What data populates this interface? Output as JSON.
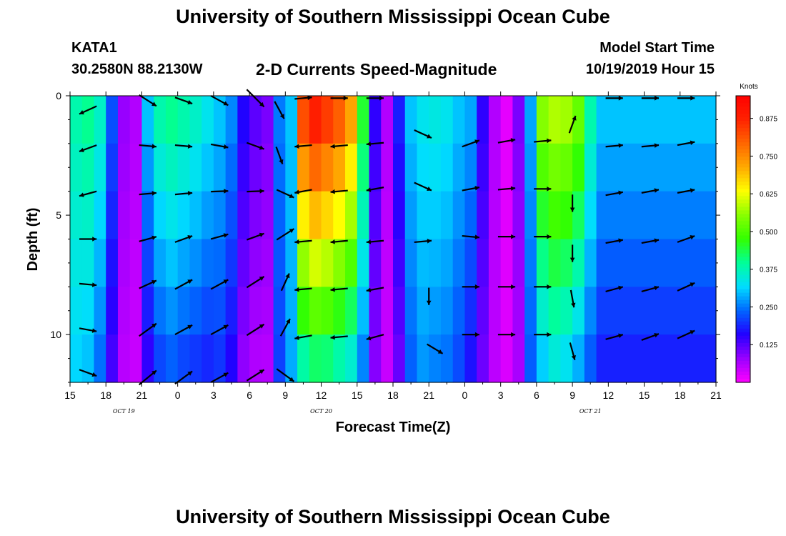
{
  "header": {
    "title": "University of Southern Mississippi Ocean Cube",
    "station": "KATA1",
    "coords": "30.2580N 88.2130W",
    "plot_title": "2-D Currents Speed-Magnitude",
    "model_label": "Model Start Time",
    "model_time": "10/19/2019 Hour 15"
  },
  "footer": {
    "title": "University of Southern Mississippi Ocean Cube"
  },
  "chart_data": {
    "type": "heatmap",
    "title": "2-D Currents Speed-Magnitude",
    "xlabel": "Forecast Time(Z)",
    "ylabel": "Depth (ft)",
    "x_ticks": [
      "15",
      "18",
      "21",
      "0",
      "3",
      "6",
      "9",
      "12",
      "15",
      "18",
      "21",
      "0",
      "3",
      "6",
      "9",
      "12",
      "15",
      "18",
      "21"
    ],
    "date_labels": [
      {
        "label": "OCT 19",
        "hour": 4.5
      },
      {
        "label": "OCT 20",
        "hour": 21
      },
      {
        "label": "OCT 21",
        "hour": 43.5
      }
    ],
    "y_ticks": [
      0,
      5,
      10
    ],
    "ylim": [
      0,
      12
    ],
    "xlim_hours": [
      0,
      54
    ],
    "depths": [
      0,
      2,
      4,
      6,
      8,
      10,
      12
    ],
    "colorbar": {
      "unit": "Knots",
      "min": 0.0,
      "max": 0.95,
      "ticks": [
        "0.125",
        "0.250",
        "0.375",
        "0.500",
        "0.625",
        "0.750",
        "0.875"
      ],
      "colors": [
        "#ff00ff",
        "#9900ff",
        "#2200ff",
        "#0066ff",
        "#00ddff",
        "#00ff99",
        "#33ff00",
        "#88ff00",
        "#ffff00",
        "#ffaa00",
        "#ff6600",
        "#ff2200",
        "#ff0000"
      ]
    },
    "speed_profiles": [
      {
        "hour": 0,
        "surface": 0.38,
        "bottom": 0.3
      },
      {
        "hour": 1,
        "surface": 0.4,
        "bottom": 0.28
      },
      {
        "hour": 2,
        "surface": 0.36,
        "bottom": 0.22
      },
      {
        "hour": 3,
        "surface": 0.22,
        "bottom": 0.12
      },
      {
        "hour": 4,
        "surface": 0.08,
        "bottom": 0.05
      },
      {
        "hour": 5,
        "surface": 0.06,
        "bottom": 0.04
      },
      {
        "hour": 6,
        "surface": 0.3,
        "bottom": 0.12
      },
      {
        "hour": 7,
        "surface": 0.38,
        "bottom": 0.18
      },
      {
        "hour": 8,
        "surface": 0.4,
        "bottom": 0.2
      },
      {
        "hour": 9,
        "surface": 0.38,
        "bottom": 0.18
      },
      {
        "hour": 10,
        "surface": 0.36,
        "bottom": 0.17
      },
      {
        "hour": 11,
        "surface": 0.33,
        "bottom": 0.16
      },
      {
        "hour": 12,
        "surface": 0.3,
        "bottom": 0.18
      },
      {
        "hour": 13,
        "surface": 0.26,
        "bottom": 0.14
      },
      {
        "hour": 14,
        "surface": 0.16,
        "bottom": 0.07
      },
      {
        "hour": 15,
        "surface": 0.12,
        "bottom": 0.05
      },
      {
        "hour": 16,
        "surface": 0.1,
        "bottom": 0.05
      },
      {
        "hour": 17,
        "surface": 0.25,
        "bottom": 0.2
      },
      {
        "hour": 18,
        "surface": 0.3,
        "bottom": 0.28
      },
      {
        "hour": 19,
        "surface": 0.82,
        "bottom": 0.3
      },
      {
        "hour": 20,
        "surface": 0.88,
        "bottom": 0.33
      },
      {
        "hour": 21,
        "surface": 0.84,
        "bottom": 0.33
      },
      {
        "hour": 22,
        "surface": 0.8,
        "bottom": 0.3
      },
      {
        "hour": 23,
        "surface": 0.72,
        "bottom": 0.28
      },
      {
        "hour": 24,
        "surface": 0.45,
        "bottom": 0.22
      },
      {
        "hour": 25,
        "surface": 0.15,
        "bottom": 0.08
      },
      {
        "hour": 26,
        "surface": 0.06,
        "bottom": 0.04
      },
      {
        "hour": 27,
        "surface": 0.18,
        "bottom": 0.1
      },
      {
        "hour": 28,
        "surface": 0.3,
        "bottom": 0.22
      },
      {
        "hour": 29,
        "surface": 0.33,
        "bottom": 0.26
      },
      {
        "hour": 30,
        "surface": 0.34,
        "bottom": 0.24
      },
      {
        "hour": 31,
        "surface": 0.33,
        "bottom": 0.23
      },
      {
        "hour": 32,
        "surface": 0.3,
        "bottom": 0.2
      },
      {
        "hour": 33,
        "surface": 0.28,
        "bottom": 0.15
      },
      {
        "hour": 34,
        "surface": 0.15,
        "bottom": 0.1
      },
      {
        "hour": 35,
        "surface": 0.06,
        "bottom": 0.05
      },
      {
        "hour": 36,
        "surface": 0.02,
        "bottom": 0.03
      },
      {
        "hour": 37,
        "surface": 0.1,
        "bottom": 0.06
      },
      {
        "hour": 38,
        "surface": 0.28,
        "bottom": 0.22
      },
      {
        "hour": 39,
        "surface": 0.55,
        "bottom": 0.26
      },
      {
        "hour": 40,
        "surface": 0.58,
        "bottom": 0.3
      },
      {
        "hour": 41,
        "surface": 0.57,
        "bottom": 0.28
      },
      {
        "hour": 42,
        "surface": 0.52,
        "bottom": 0.24
      },
      {
        "hour": 43,
        "surface": 0.38,
        "bottom": 0.2
      },
      {
        "hour": 44,
        "surface": 0.3,
        "bottom": 0.16
      }
    ],
    "vectors": [
      {
        "t": 1.5,
        "d": 0.6,
        "u": -0.55,
        "v": -0.25
      },
      {
        "t": 1.5,
        "d": 2.2,
        "u": -0.55,
        "v": -0.2
      },
      {
        "t": 1.5,
        "d": 4.1,
        "u": -0.55,
        "v": -0.15
      },
      {
        "t": 1.5,
        "d": 6.0,
        "u": 0.55,
        "v": 0.0
      },
      {
        "t": 1.5,
        "d": 7.9,
        "u": 0.55,
        "v": -0.05
      },
      {
        "t": 1.5,
        "d": 9.8,
        "u": 0.55,
        "v": -0.1
      },
      {
        "t": 1.5,
        "d": 11.6,
        "u": 0.55,
        "v": -0.2
      },
      {
        "t": 3,
        "d": 0.2,
        "u": 0.0,
        "v": 0.0
      },
      {
        "t": 6.5,
        "d": 0.2,
        "u": 0.55,
        "v": -0.35
      },
      {
        "t": 6.5,
        "d": 2.1,
        "u": 0.55,
        "v": -0.05
      },
      {
        "t": 6.5,
        "d": 4.1,
        "u": 0.55,
        "v": 0.05
      },
      {
        "t": 6.5,
        "d": 6.0,
        "u": 0.55,
        "v": 0.15
      },
      {
        "t": 6.5,
        "d": 7.9,
        "u": 0.55,
        "v": 0.25
      },
      {
        "t": 6.5,
        "d": 9.8,
        "u": 0.55,
        "v": 0.4
      },
      {
        "t": 6.5,
        "d": 11.8,
        "u": 0.55,
        "v": 0.45
      },
      {
        "t": 9.5,
        "d": 0.2,
        "u": 0.55,
        "v": -0.2
      },
      {
        "t": 9.5,
        "d": 2.1,
        "u": 0.55,
        "v": -0.05
      },
      {
        "t": 9.5,
        "d": 4.1,
        "u": 0.55,
        "v": 0.05
      },
      {
        "t": 9.5,
        "d": 6.0,
        "u": 0.55,
        "v": 0.2
      },
      {
        "t": 9.5,
        "d": 7.9,
        "u": 0.55,
        "v": 0.3
      },
      {
        "t": 9.5,
        "d": 9.8,
        "u": 0.55,
        "v": 0.3
      },
      {
        "t": 9.5,
        "d": 11.8,
        "u": 0.55,
        "v": 0.4
      },
      {
        "t": 12.5,
        "d": 0.2,
        "u": 0.55,
        "v": -0.3
      },
      {
        "t": 12.5,
        "d": 2.1,
        "u": 0.55,
        "v": -0.1
      },
      {
        "t": 12.5,
        "d": 4.0,
        "u": 0.55,
        "v": 0.02
      },
      {
        "t": 12.5,
        "d": 5.9,
        "u": 0.55,
        "v": 0.15
      },
      {
        "t": 12.5,
        "d": 7.9,
        "u": 0.55,
        "v": 0.3
      },
      {
        "t": 12.5,
        "d": 9.8,
        "u": 0.55,
        "v": 0.3
      },
      {
        "t": 12.5,
        "d": 11.8,
        "u": 0.55,
        "v": 0.3
      },
      {
        "t": 15.5,
        "d": 0.1,
        "u": 0.55,
        "v": -0.55
      },
      {
        "t": 15.5,
        "d": 2.1,
        "u": 0.55,
        "v": -0.2
      },
      {
        "t": 15.5,
        "d": 4.0,
        "u": 0.55,
        "v": 0.02
      },
      {
        "t": 15.5,
        "d": 5.9,
        "u": 0.55,
        "v": 0.2
      },
      {
        "t": 15.5,
        "d": 7.8,
        "u": 0.55,
        "v": 0.35
      },
      {
        "t": 15.5,
        "d": 9.8,
        "u": 0.55,
        "v": 0.35
      },
      {
        "t": 15.5,
        "d": 11.7,
        "u": 0.55,
        "v": 0.35
      },
      {
        "t": 17.5,
        "d": 0.6,
        "u": 0.3,
        "v": -0.55
      },
      {
        "t": 17.5,
        "d": 2.5,
        "u": 0.2,
        "v": -0.55
      },
      {
        "t": 18.0,
        "d": 4.1,
        "u": 0.55,
        "v": -0.25
      },
      {
        "t": 18.0,
        "d": 5.8,
        "u": 0.55,
        "v": 0.35
      },
      {
        "t": 18.0,
        "d": 7.8,
        "u": 0.25,
        "v": 0.55
      },
      {
        "t": 18.0,
        "d": 9.7,
        "u": 0.3,
        "v": 0.55
      },
      {
        "t": 18.0,
        "d": 11.7,
        "u": 0.55,
        "v": -0.4
      },
      {
        "t": 19.5,
        "d": 0.1,
        "u": 0.55,
        "v": 0.05
      },
      {
        "t": 19.5,
        "d": 2.1,
        "u": -0.55,
        "v": -0.05
      },
      {
        "t": 19.5,
        "d": 4.0,
        "u": -0.55,
        "v": -0.1
      },
      {
        "t": 19.5,
        "d": 6.1,
        "u": -0.55,
        "v": -0.05
      },
      {
        "t": 19.5,
        "d": 8.1,
        "u": -0.55,
        "v": -0.05
      },
      {
        "t": 19.5,
        "d": 10.1,
        "u": -0.55,
        "v": -0.1
      },
      {
        "t": 22.5,
        "d": 0.1,
        "u": 0.55,
        "v": 0.0
      },
      {
        "t": 22.5,
        "d": 2.1,
        "u": -0.55,
        "v": -0.05
      },
      {
        "t": 22.5,
        "d": 4.0,
        "u": -0.55,
        "v": -0.05
      },
      {
        "t": 22.5,
        "d": 6.1,
        "u": -0.55,
        "v": -0.05
      },
      {
        "t": 22.5,
        "d": 8.1,
        "u": -0.55,
        "v": -0.05
      },
      {
        "t": 22.5,
        "d": 10.1,
        "u": -0.55,
        "v": -0.05
      },
      {
        "t": 25.5,
        "d": 0.1,
        "u": 0.55,
        "v": 0.0
      },
      {
        "t": 25.5,
        "d": 2.0,
        "u": -0.55,
        "v": -0.05
      },
      {
        "t": 25.5,
        "d": 3.9,
        "u": -0.55,
        "v": -0.1
      },
      {
        "t": 25.5,
        "d": 6.1,
        "u": -0.55,
        "v": -0.05
      },
      {
        "t": 25.5,
        "d": 8.1,
        "u": -0.55,
        "v": -0.1
      },
      {
        "t": 25.5,
        "d": 10.1,
        "u": -0.55,
        "v": -0.15
      },
      {
        "t": 29.5,
        "d": 1.6,
        "u": 0.55,
        "v": -0.25
      },
      {
        "t": 29.5,
        "d": 3.8,
        "u": 0.55,
        "v": -0.25
      },
      {
        "t": 29.5,
        "d": 6.1,
        "u": 0.55,
        "v": 0.05
      },
      {
        "t": 30.0,
        "d": 8.4,
        "u": 0.0,
        "v": -0.55
      },
      {
        "t": 30.5,
        "d": 10.6,
        "u": 0.5,
        "v": -0.3
      },
      {
        "t": 33.5,
        "d": 2.0,
        "u": 0.55,
        "v": 0.2
      },
      {
        "t": 33.5,
        "d": 3.9,
        "u": 0.55,
        "v": 0.1
      },
      {
        "t": 33.5,
        "d": 5.9,
        "u": 0.55,
        "v": -0.05
      },
      {
        "t": 33.5,
        "d": 8.0,
        "u": 0.55,
        "v": 0.0
      },
      {
        "t": 33.5,
        "d": 10.0,
        "u": 0.55,
        "v": 0.0
      },
      {
        "t": 36.5,
        "d": 1.9,
        "u": 0.55,
        "v": 0.1
      },
      {
        "t": 36.5,
        "d": 3.9,
        "u": 0.55,
        "v": 0.05
      },
      {
        "t": 36.5,
        "d": 5.9,
        "u": 0.55,
        "v": 0.0
      },
      {
        "t": 36.5,
        "d": 8.0,
        "u": 0.55,
        "v": 0.0
      },
      {
        "t": 36.5,
        "d": 10.0,
        "u": 0.55,
        "v": 0.0
      },
      {
        "t": 39.5,
        "d": 1.9,
        "u": 0.55,
        "v": 0.05
      },
      {
        "t": 39.5,
        "d": 3.9,
        "u": 0.55,
        "v": 0.0
      },
      {
        "t": 39.5,
        "d": 5.9,
        "u": 0.55,
        "v": 0.0
      },
      {
        "t": 39.5,
        "d": 8.0,
        "u": 0.55,
        "v": 0.0
      },
      {
        "t": 39.5,
        "d": 10.0,
        "u": 0.55,
        "v": 0.0
      },
      {
        "t": 42.0,
        "d": 1.2,
        "u": 0.2,
        "v": 0.55
      },
      {
        "t": 42.0,
        "d": 4.5,
        "u": 0.0,
        "v": -0.55
      },
      {
        "t": 42.0,
        "d": 6.6,
        "u": 0.0,
        "v": -0.55
      },
      {
        "t": 42.0,
        "d": 8.5,
        "u": 0.1,
        "v": -0.55
      },
      {
        "t": 42.0,
        "d": 10.7,
        "u": 0.15,
        "v": -0.55
      },
      {
        "t": 45.5,
        "d": 0.1,
        "u": 0.55,
        "v": 0.0
      },
      {
        "t": 45.5,
        "d": 2.1,
        "u": 0.55,
        "v": 0.05
      },
      {
        "t": 45.5,
        "d": 4.1,
        "u": 0.55,
        "v": 0.1
      },
      {
        "t": 45.5,
        "d": 6.1,
        "u": 0.55,
        "v": 0.1
      },
      {
        "t": 45.5,
        "d": 8.1,
        "u": 0.55,
        "v": 0.15
      },
      {
        "t": 45.5,
        "d": 10.1,
        "u": 0.55,
        "v": 0.15
      },
      {
        "t": 48.5,
        "d": 0.1,
        "u": 0.55,
        "v": 0.0
      },
      {
        "t": 48.5,
        "d": 2.1,
        "u": 0.55,
        "v": 0.05
      },
      {
        "t": 48.5,
        "d": 4.0,
        "u": 0.55,
        "v": 0.1
      },
      {
        "t": 48.5,
        "d": 6.1,
        "u": 0.55,
        "v": 0.1
      },
      {
        "t": 48.5,
        "d": 8.1,
        "u": 0.55,
        "v": 0.15
      },
      {
        "t": 48.5,
        "d": 10.1,
        "u": 0.55,
        "v": 0.2
      },
      {
        "t": 51.5,
        "d": 0.1,
        "u": 0.55,
        "v": 0.0
      },
      {
        "t": 51.5,
        "d": 2.0,
        "u": 0.55,
        "v": 0.1
      },
      {
        "t": 51.5,
        "d": 4.0,
        "u": 0.55,
        "v": 0.1
      },
      {
        "t": 51.5,
        "d": 6.0,
        "u": 0.55,
        "v": 0.2
      },
      {
        "t": 51.5,
        "d": 8.0,
        "u": 0.55,
        "v": 0.25
      },
      {
        "t": 51.5,
        "d": 10.0,
        "u": 0.55,
        "v": 0.25
      }
    ]
  }
}
